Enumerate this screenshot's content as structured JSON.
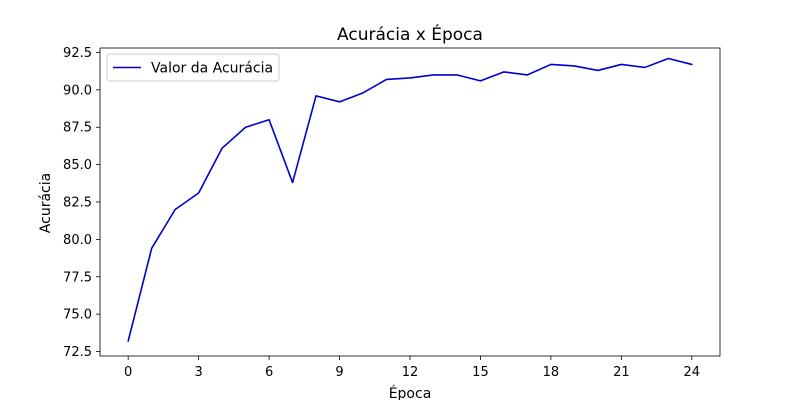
{
  "chart_data": {
    "type": "line",
    "title": "Acurácia x Época",
    "xlabel": "Época",
    "ylabel": "Acurácia",
    "xlim": [
      -1.2,
      25.2
    ],
    "ylim": [
      72.2,
      92.8
    ],
    "xticks": [
      0,
      3,
      6,
      9,
      12,
      15,
      18,
      21,
      24
    ],
    "yticks": [
      72.5,
      75.0,
      77.5,
      80.0,
      82.5,
      85.0,
      87.5,
      90.0,
      92.5
    ],
    "ytick_labels": [
      "72.5",
      "75.0",
      "77.5",
      "80.0",
      "82.5",
      "85.0",
      "87.5",
      "90.0",
      "92.5"
    ],
    "legend_position": "top-left",
    "grid": false,
    "series": [
      {
        "name": "Valor da Acurácia",
        "color": "#0000cc",
        "x": [
          0,
          1,
          2,
          3,
          4,
          5,
          6,
          7,
          8,
          9,
          10,
          11,
          12,
          13,
          14,
          15,
          16,
          17,
          18,
          19,
          20,
          21,
          22,
          23,
          24
        ],
        "values": [
          73.2,
          79.4,
          82.0,
          83.1,
          86.1,
          87.5,
          88.0,
          83.8,
          89.6,
          89.2,
          89.8,
          90.7,
          90.8,
          91.0,
          91.0,
          90.6,
          91.2,
          91.0,
          91.7,
          91.6,
          91.3,
          91.7,
          91.5,
          92.1,
          91.7
        ]
      }
    ]
  }
}
